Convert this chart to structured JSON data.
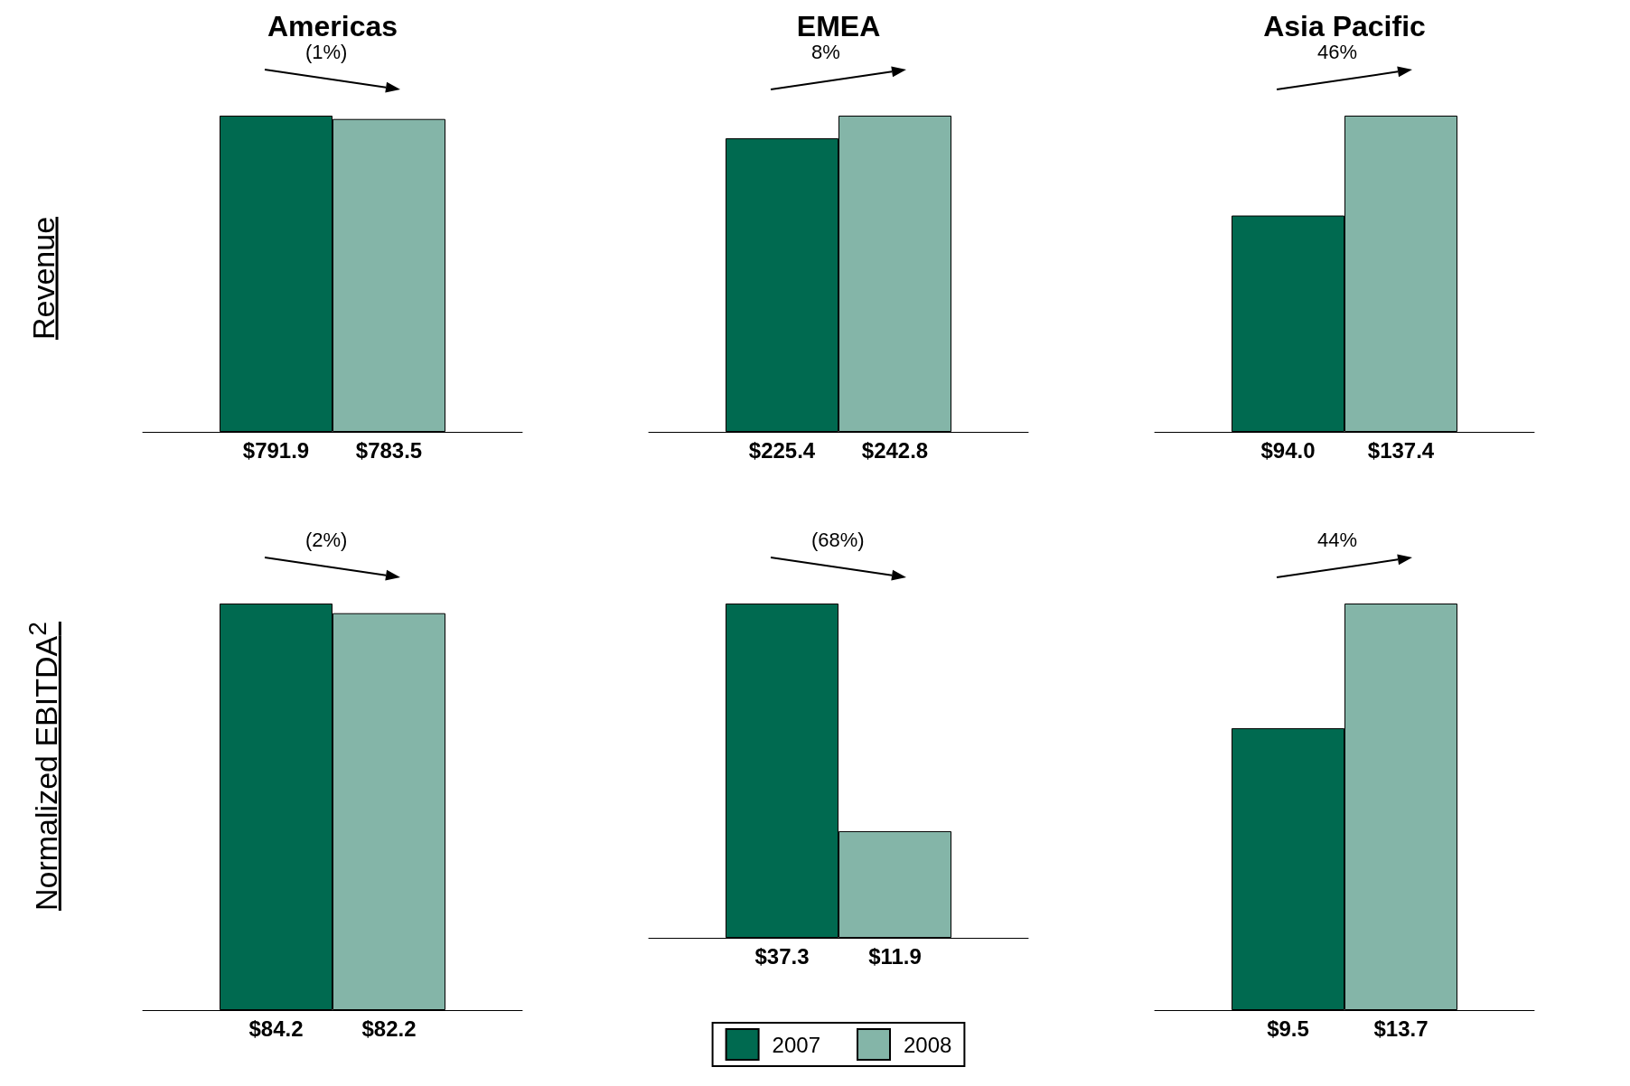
{
  "chart_data": [
    {
      "type": "bar",
      "title": "Americas",
      "ylabel": "Revenue",
      "categories": [
        null
      ],
      "annotations": [
        "(1%)"
      ],
      "series": [
        {
          "color": "#006a50",
          "values": [
            791.9
          ],
          "value_labels": [
            "$791.9"
          ]
        },
        {
          "color": "#84b5a8",
          "values": [
            783.5
          ],
          "value_labels": [
            "$783.5"
          ]
        }
      ]
    },
    {
      "type": "bar",
      "title": "EMEA",
      "categories": [
        null
      ],
      "annotations": [
        "8%"
      ],
      "series": [
        {
          "color": "#006a50",
          "values": [
            225.4
          ],
          "value_labels": [
            "$225.4"
          ]
        },
        {
          "color": "#84b5a8",
          "values": [
            242.8
          ],
          "value_labels": [
            "$242.8"
          ]
        }
      ]
    },
    {
      "type": "bar",
      "title": "Asia Pacific",
      "categories": [
        null
      ],
      "annotations": [
        "46%"
      ],
      "series": [
        {
          "color": "#006a50",
          "values": [
            94.0
          ],
          "value_labels": [
            "$94.0"
          ]
        },
        {
          "color": "#84b5a8",
          "values": [
            137.4
          ],
          "value_labels": [
            "$137.4"
          ]
        }
      ]
    },
    {
      "type": "bar",
      "ylabel": "Normalized EBITDA$^{2}$",
      "categories": [
        null
      ],
      "annotations": [
        "(2%)"
      ],
      "series": [
        {
          "color": "#006a50",
          "values": [
            84.2
          ],
          "value_labels": [
            "$84.2"
          ]
        },
        {
          "color": "#84b5a8",
          "values": [
            82.2
          ],
          "value_labels": [
            "$82.2"
          ]
        }
      ]
    },
    {
      "type": "bar",
      "categories": [
        null
      ],
      "annotations": [
        "(68%)"
      ],
      "legend": "bottom",
      "series": [
        {
          "name": "2007",
          "color": "#006a50",
          "values": [
            37.3
          ],
          "value_labels": [
            "$37.3"
          ]
        },
        {
          "name": "2008",
          "color": "#84b5a8",
          "values": [
            11.9
          ],
          "value_labels": [
            "$11.9"
          ]
        }
      ]
    },
    {
      "type": "bar",
      "categories": [
        null
      ],
      "annotations": [
        "44%"
      ],
      "series": [
        {
          "color": "#006a50",
          "values": [
            9.5
          ],
          "value_labels": [
            "$9.5"
          ]
        },
        {
          "color": "#84b5a8",
          "values": [
            13.7
          ],
          "value_labels": [
            "$13.7"
          ]
        }
      ]
    }
  ]
}
